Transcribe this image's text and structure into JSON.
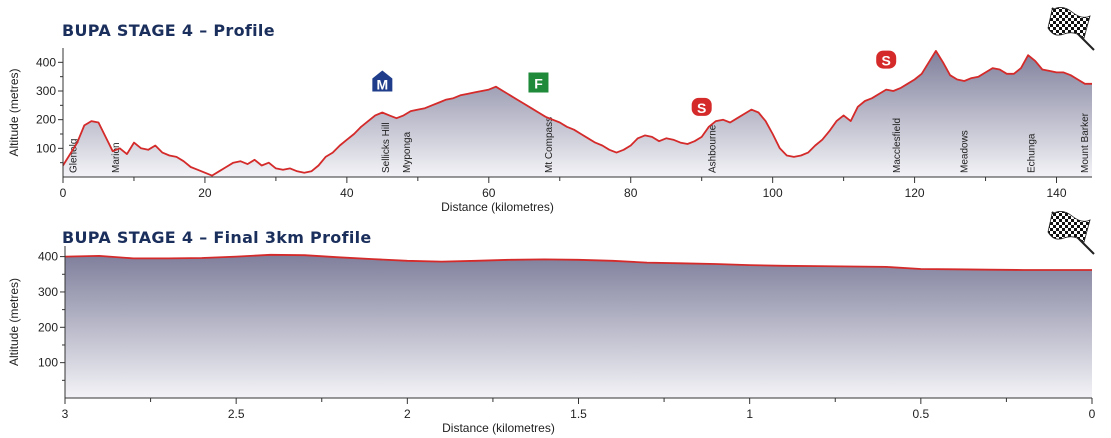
{
  "chart_data": [
    {
      "type": "area",
      "title": "BUPA STAGE 4 – Profile",
      "xlabel": "Distance (kilometres)",
      "ylabel": "Altitude (metres)",
      "xlim": [
        0,
        145
      ],
      "ylim": [
        0,
        450
      ],
      "xticks": [
        0,
        20,
        40,
        60,
        80,
        100,
        120,
        140
      ],
      "yticks": [
        100,
        200,
        300,
        400
      ],
      "fill_color": "#8f8fa8",
      "line_color": "#d42a2a",
      "points": [
        [
          0,
          40
        ],
        [
          1,
          80
        ],
        [
          2,
          120
        ],
        [
          3,
          180
        ],
        [
          4,
          195
        ],
        [
          5,
          190
        ],
        [
          6,
          140
        ],
        [
          7,
          90
        ],
        [
          8,
          100
        ],
        [
          9,
          80
        ],
        [
          10,
          120
        ],
        [
          11,
          100
        ],
        [
          12,
          95
        ],
        [
          13,
          110
        ],
        [
          14,
          85
        ],
        [
          15,
          75
        ],
        [
          16,
          70
        ],
        [
          17,
          55
        ],
        [
          18,
          35
        ],
        [
          19,
          25
        ],
        [
          20,
          15
        ],
        [
          21,
          5
        ],
        [
          22,
          20
        ],
        [
          23,
          35
        ],
        [
          24,
          50
        ],
        [
          25,
          55
        ],
        [
          26,
          45
        ],
        [
          27,
          60
        ],
        [
          28,
          40
        ],
        [
          29,
          50
        ],
        [
          30,
          30
        ],
        [
          31,
          25
        ],
        [
          32,
          30
        ],
        [
          33,
          20
        ],
        [
          34,
          15
        ],
        [
          35,
          20
        ],
        [
          36,
          40
        ],
        [
          37,
          70
        ],
        [
          38,
          85
        ],
        [
          39,
          110
        ],
        [
          40,
          130
        ],
        [
          41,
          150
        ],
        [
          42,
          175
        ],
        [
          43,
          195
        ],
        [
          44,
          215
        ],
        [
          45,
          225
        ],
        [
          46,
          215
        ],
        [
          47,
          205
        ],
        [
          48,
          215
        ],
        [
          49,
          230
        ],
        [
          50,
          235
        ],
        [
          51,
          240
        ],
        [
          52,
          250
        ],
        [
          53,
          260
        ],
        [
          54,
          270
        ],
        [
          55,
          275
        ],
        [
          56,
          285
        ],
        [
          57,
          290
        ],
        [
          58,
          295
        ],
        [
          59,
          300
        ],
        [
          60,
          305
        ],
        [
          61,
          315
        ],
        [
          62,
          300
        ],
        [
          63,
          285
        ],
        [
          64,
          270
        ],
        [
          65,
          255
        ],
        [
          66,
          240
        ],
        [
          67,
          225
        ],
        [
          68,
          210
        ],
        [
          69,
          200
        ],
        [
          70,
          190
        ],
        [
          71,
          175
        ],
        [
          72,
          165
        ],
        [
          73,
          150
        ],
        [
          74,
          135
        ],
        [
          75,
          120
        ],
        [
          76,
          110
        ],
        [
          77,
          95
        ],
        [
          78,
          85
        ],
        [
          79,
          95
        ],
        [
          80,
          110
        ],
        [
          81,
          135
        ],
        [
          82,
          145
        ],
        [
          83,
          140
        ],
        [
          84,
          125
        ],
        [
          85,
          135
        ],
        [
          86,
          130
        ],
        [
          87,
          120
        ],
        [
          88,
          115
        ],
        [
          89,
          125
        ],
        [
          90,
          140
        ],
        [
          91,
          175
        ],
        [
          92,
          195
        ],
        [
          93,
          200
        ],
        [
          94,
          190
        ],
        [
          95,
          205
        ],
        [
          96,
          220
        ],
        [
          97,
          235
        ],
        [
          98,
          225
        ],
        [
          99,
          195
        ],
        [
          100,
          150
        ],
        [
          101,
          100
        ],
        [
          102,
          75
        ],
        [
          103,
          70
        ],
        [
          104,
          75
        ],
        [
          105,
          85
        ],
        [
          106,
          110
        ],
        [
          107,
          130
        ],
        [
          108,
          160
        ],
        [
          109,
          195
        ],
        [
          110,
          215
        ],
        [
          111,
          195
        ],
        [
          112,
          245
        ],
        [
          113,
          265
        ],
        [
          114,
          275
        ],
        [
          115,
          290
        ],
        [
          116,
          305
        ],
        [
          117,
          300
        ],
        [
          118,
          310
        ],
        [
          119,
          325
        ],
        [
          120,
          340
        ],
        [
          121,
          360
        ],
        [
          122,
          400
        ],
        [
          123,
          440
        ],
        [
          124,
          400
        ],
        [
          125,
          355
        ],
        [
          126,
          340
        ],
        [
          127,
          335
        ],
        [
          128,
          345
        ],
        [
          129,
          350
        ],
        [
          130,
          365
        ],
        [
          131,
          380
        ],
        [
          132,
          375
        ],
        [
          133,
          360
        ],
        [
          134,
          360
        ],
        [
          135,
          380
        ],
        [
          136,
          425
        ],
        [
          137,
          405
        ],
        [
          138,
          375
        ],
        [
          139,
          370
        ],
        [
          140,
          365
        ],
        [
          141,
          365
        ],
        [
          142,
          355
        ],
        [
          143,
          340
        ],
        [
          144,
          325
        ],
        [
          145,
          325
        ]
      ],
      "places": [
        {
          "name": "Glenelg",
          "km": 1.5
        },
        {
          "name": "Marion",
          "km": 7.5
        },
        {
          "name": "Sellicks Hill",
          "km": 45.5
        },
        {
          "name": "Myponga",
          "km": 48.5
        },
        {
          "name": "Mt Compass",
          "km": 68.5
        },
        {
          "name": "Ashbourne",
          "km": 91.5
        },
        {
          "name": "Macclesfield",
          "km": 117.5
        },
        {
          "name": "Meadows",
          "km": 127.0
        },
        {
          "name": "Echunga",
          "km": 136.5
        },
        {
          "name": "Mount Barker",
          "km": 144.0
        }
      ],
      "markers": [
        {
          "letter": "M",
          "km": 45,
          "type": "mountain",
          "color": "#1f3d8a"
        },
        {
          "letter": "F",
          "km": 67,
          "type": "feed",
          "color": "#1e8a3a"
        },
        {
          "letter": "S",
          "km": 90,
          "type": "sprint",
          "color": "#d42a2a"
        },
        {
          "letter": "S",
          "km": 116,
          "type": "sprint",
          "color": "#d42a2a"
        }
      ]
    },
    {
      "type": "area",
      "title": "BUPA STAGE 4 – Final 3km Profile",
      "xlabel": "Distance (kilometres)",
      "ylabel": "Altitude (metres)",
      "xlim": [
        3,
        0
      ],
      "ylim": [
        0,
        430
      ],
      "xticks": [
        3,
        2.5,
        2,
        1.5,
        1,
        0.5,
        0
      ],
      "xtick_labels": [
        "3",
        "2.5",
        "2",
        "1.5",
        "1",
        "0.5",
        "0"
      ],
      "yticks": [
        100,
        200,
        300,
        400
      ],
      "fill_color": "#8f8fa8",
      "line_color": "#d42a2a",
      "points": [
        [
          3,
          400
        ],
        [
          2.9,
          402
        ],
        [
          2.8,
          395
        ],
        [
          2.7,
          395
        ],
        [
          2.6,
          396
        ],
        [
          2.5,
          400
        ],
        [
          2.4,
          405
        ],
        [
          2.3,
          404
        ],
        [
          2.2,
          398
        ],
        [
          2.1,
          393
        ],
        [
          2.0,
          388
        ],
        [
          1.9,
          386
        ],
        [
          1.8,
          388
        ],
        [
          1.7,
          391
        ],
        [
          1.6,
          392
        ],
        [
          1.5,
          391
        ],
        [
          1.4,
          388
        ],
        [
          1.3,
          383
        ],
        [
          1.2,
          381
        ],
        [
          1.1,
          379
        ],
        [
          1.0,
          376
        ],
        [
          0.9,
          374
        ],
        [
          0.8,
          373
        ],
        [
          0.7,
          372
        ],
        [
          0.6,
          371
        ],
        [
          0.5,
          365
        ],
        [
          0.4,
          364
        ],
        [
          0.3,
          363
        ],
        [
          0.2,
          362
        ],
        [
          0.1,
          362
        ],
        [
          0,
          362
        ]
      ]
    }
  ]
}
